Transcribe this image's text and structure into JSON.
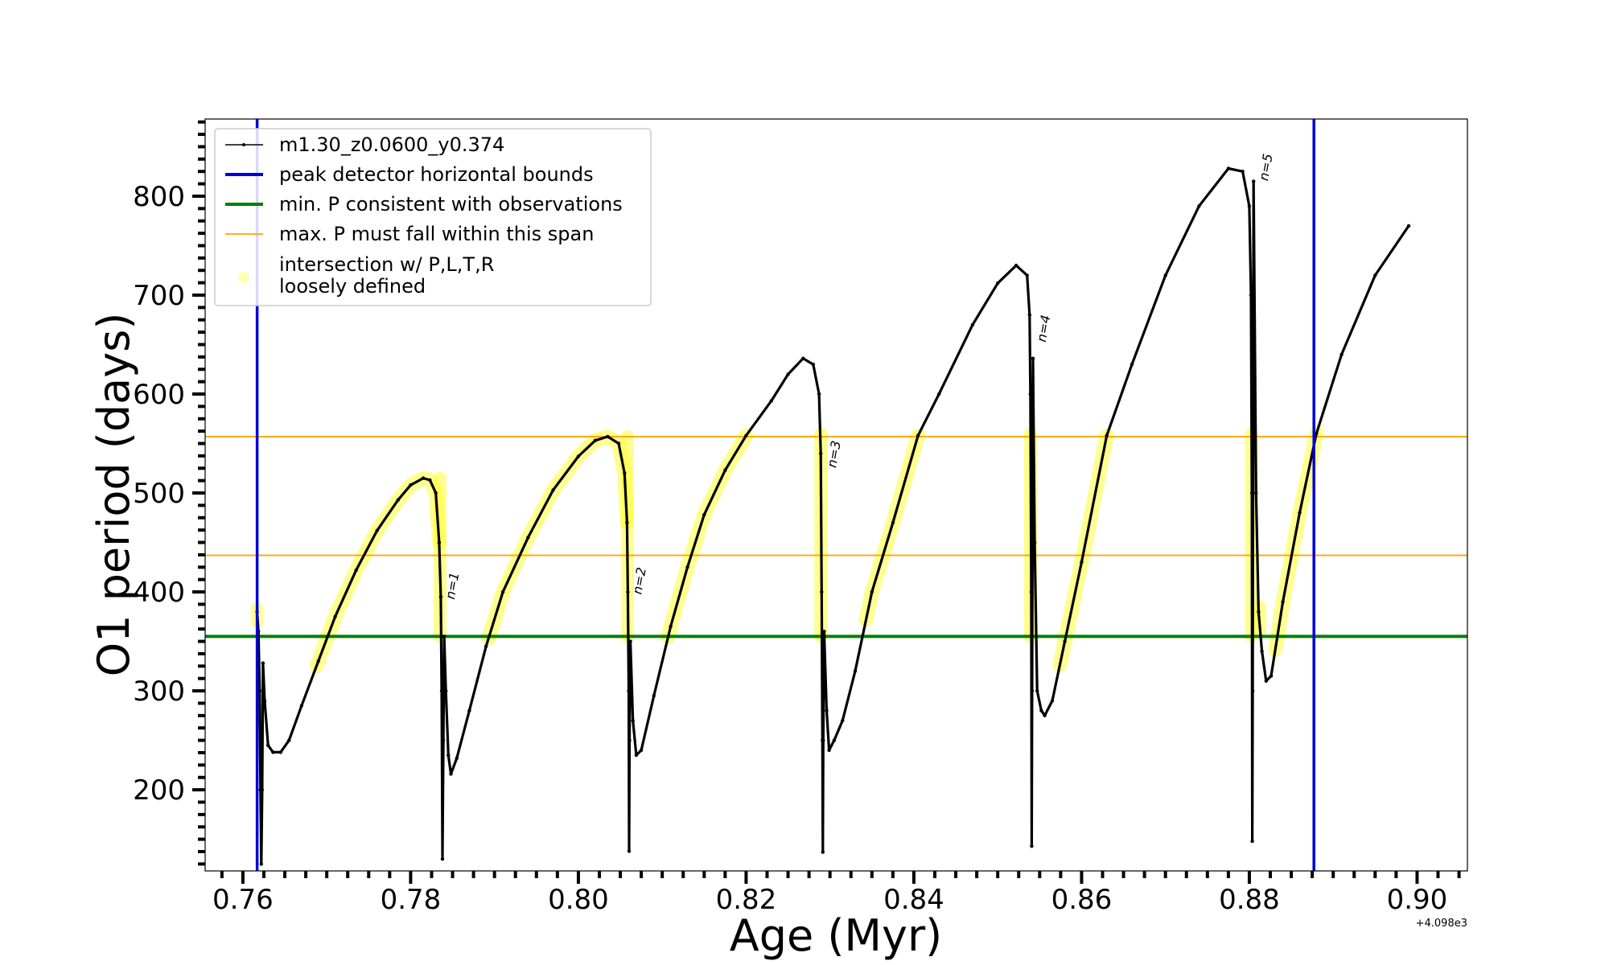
{
  "chart_data": {
    "type": "line",
    "title": "",
    "xlabel": "Age (Myr)",
    "ylabel": "O1 period (days)",
    "x_offset_label": "+4.098e3",
    "xlim": [
      0.7555,
      0.906
    ],
    "ylim": [
      118,
      878
    ],
    "x_ticks": [
      0.76,
      0.78,
      0.8,
      0.82,
      0.84,
      0.86,
      0.88,
      0.9
    ],
    "x_tick_labels": [
      "0.76",
      "0.78",
      "0.80",
      "0.82",
      "0.84",
      "0.86",
      "0.88",
      "0.90"
    ],
    "y_ticks": [
      200,
      300,
      400,
      500,
      600,
      700,
      800
    ],
    "y_tick_labels": [
      "200",
      "300",
      "400",
      "500",
      "600",
      "700",
      "800"
    ],
    "grid": false,
    "legend_position": "top-left",
    "legend": [
      {
        "label": "m1.30_z0.0600_y0.374",
        "color": "#000000",
        "style": "line-marker"
      },
      {
        "label": "peak detector horizontal bounds",
        "color": "#0000dd",
        "style": "line"
      },
      {
        "label": "min. P consistent with observations",
        "color": "#008000",
        "style": "line"
      },
      {
        "label": "max. P must fall within this span",
        "color": "#ffa500",
        "style": "thin-line"
      },
      {
        "label": "intersection w/ P,L,T,R",
        "label2": "loosely defined",
        "color": "#ffff00",
        "style": "dot"
      }
    ],
    "vertical_lines": [
      {
        "x": 0.7617,
        "color": "#0000dd"
      },
      {
        "x": 0.8877,
        "color": "#0000dd"
      }
    ],
    "horizontal_lines": [
      {
        "y": 355,
        "color": "#008000",
        "role": "min"
      },
      {
        "y": 437,
        "color": "#ffa500",
        "role": "span-low"
      },
      {
        "y": 557,
        "color": "#ffa500",
        "role": "span-high"
      }
    ],
    "series": [
      {
        "color": "#000000",
        "points": [
          [
            0.7617,
            380
          ],
          [
            0.76185,
            360
          ],
          [
            0.762,
            300
          ],
          [
            0.7621,
            200
          ],
          [
            0.7622,
            125
          ],
          [
            0.7623,
            200
          ],
          [
            0.7624,
            328
          ],
          [
            0.7626,
            290
          ],
          [
            0.763,
            245
          ],
          [
            0.7636,
            238
          ],
          [
            0.7645,
            238
          ],
          [
            0.7655,
            250
          ],
          [
            0.767,
            285
          ],
          [
            0.769,
            330
          ],
          [
            0.771,
            375
          ],
          [
            0.7735,
            422
          ],
          [
            0.776,
            462
          ],
          [
            0.7785,
            493
          ],
          [
            0.78,
            508
          ],
          [
            0.7815,
            515
          ],
          [
            0.7823,
            513
          ],
          [
            0.783,
            500
          ],
          [
            0.7834,
            450
          ],
          [
            0.7836,
            395
          ],
          [
            0.7837,
            300
          ],
          [
            0.7838,
            130
          ],
          [
            0.7839,
            250
          ],
          [
            0.784,
            355
          ],
          [
            0.7842,
            300
          ],
          [
            0.7845,
            235
          ],
          [
            0.7848,
            216
          ],
          [
            0.7855,
            232
          ],
          [
            0.787,
            280
          ],
          [
            0.789,
            345
          ],
          [
            0.791,
            400
          ],
          [
            0.794,
            455
          ],
          [
            0.797,
            503
          ],
          [
            0.8,
            537
          ],
          [
            0.802,
            553
          ],
          [
            0.8035,
            557
          ],
          [
            0.8048,
            550
          ],
          [
            0.8055,
            520
          ],
          [
            0.8058,
            470
          ],
          [
            0.8059,
            400
          ],
          [
            0.806,
            300
          ],
          [
            0.80605,
            138
          ],
          [
            0.8061,
            250
          ],
          [
            0.8062,
            350
          ],
          [
            0.8065,
            270
          ],
          [
            0.8069,
            235
          ],
          [
            0.8075,
            240
          ],
          [
            0.809,
            295
          ],
          [
            0.811,
            365
          ],
          [
            0.813,
            425
          ],
          [
            0.815,
            478
          ],
          [
            0.8175,
            523
          ],
          [
            0.82,
            558
          ],
          [
            0.823,
            593
          ],
          [
            0.825,
            620
          ],
          [
            0.8268,
            636
          ],
          [
            0.828,
            630
          ],
          [
            0.8287,
            600
          ],
          [
            0.8289,
            540
          ],
          [
            0.829,
            400
          ],
          [
            0.8291,
            250
          ],
          [
            0.82915,
            137
          ],
          [
            0.8292,
            250
          ],
          [
            0.8293,
            360
          ],
          [
            0.8296,
            280
          ],
          [
            0.8299,
            240
          ],
          [
            0.8305,
            250
          ],
          [
            0.8315,
            270
          ],
          [
            0.833,
            320
          ],
          [
            0.835,
            400
          ],
          [
            0.8375,
            470
          ],
          [
            0.8405,
            558
          ],
          [
            0.843,
            600
          ],
          [
            0.847,
            670
          ],
          [
            0.85,
            712
          ],
          [
            0.8522,
            730
          ],
          [
            0.8535,
            720
          ],
          [
            0.8538,
            680
          ],
          [
            0.8539,
            600
          ],
          [
            0.854,
            400
          ],
          [
            0.85405,
            143
          ],
          [
            0.8541,
            300
          ],
          [
            0.8542,
            636
          ],
          [
            0.8544,
            450
          ],
          [
            0.8547,
            300
          ],
          [
            0.8552,
            280
          ],
          [
            0.8556,
            275
          ],
          [
            0.8565,
            290
          ],
          [
            0.858,
            350
          ],
          [
            0.86,
            430
          ],
          [
            0.863,
            558
          ],
          [
            0.866,
            630
          ],
          [
            0.87,
            720
          ],
          [
            0.874,
            790
          ],
          [
            0.8775,
            828
          ],
          [
            0.8792,
            825
          ],
          [
            0.88,
            790
          ],
          [
            0.8802,
            700
          ],
          [
            0.8803,
            500
          ],
          [
            0.88035,
            148
          ],
          [
            0.8804,
            300
          ],
          [
            0.8805,
            815
          ],
          [
            0.8808,
            500
          ],
          [
            0.8811,
            380
          ],
          [
            0.8815,
            340
          ],
          [
            0.882,
            310
          ],
          [
            0.8826,
            315
          ],
          [
            0.884,
            390
          ],
          [
            0.886,
            480
          ],
          [
            0.888,
            560
          ],
          [
            0.891,
            640
          ],
          [
            0.895,
            720
          ],
          [
            0.899,
            770
          ]
        ]
      }
    ],
    "highlight_segments": [
      [
        0.7612,
        0.7622,
        370,
        383,
        "v"
      ],
      [
        0.7688,
        0.7834,
        0,
        0,
        "curve"
      ],
      [
        0.7832,
        0.7838,
        355,
        515,
        "v"
      ],
      [
        0.7893,
        0.8058,
        0,
        0,
        "curve"
      ],
      [
        0.8055,
        0.8062,
        355,
        557,
        "v"
      ],
      [
        0.8107,
        0.82,
        0,
        0,
        "curve"
      ],
      [
        0.8286,
        0.8292,
        355,
        560,
        "v"
      ],
      [
        0.8343,
        0.8405,
        0,
        0,
        "curve"
      ],
      [
        0.8536,
        0.8542,
        355,
        560,
        "v"
      ],
      [
        0.8574,
        0.863,
        0,
        0,
        "curve"
      ],
      [
        0.8799,
        0.8806,
        355,
        560,
        "v"
      ],
      [
        0.881,
        0.8815,
        360,
        385,
        "v"
      ],
      [
        0.8831,
        0.888,
        0,
        0,
        "curve"
      ]
    ],
    "annotations": [
      {
        "text": "n=1",
        "x": 0.7852,
        "y": 392
      },
      {
        "text": "n=2",
        "x": 0.8075,
        "y": 397
      },
      {
        "text": "n=3",
        "x": 0.8307,
        "y": 525
      },
      {
        "text": "n=4",
        "x": 0.8557,
        "y": 652
      },
      {
        "text": "n=5",
        "x": 0.8822,
        "y": 815
      }
    ]
  }
}
